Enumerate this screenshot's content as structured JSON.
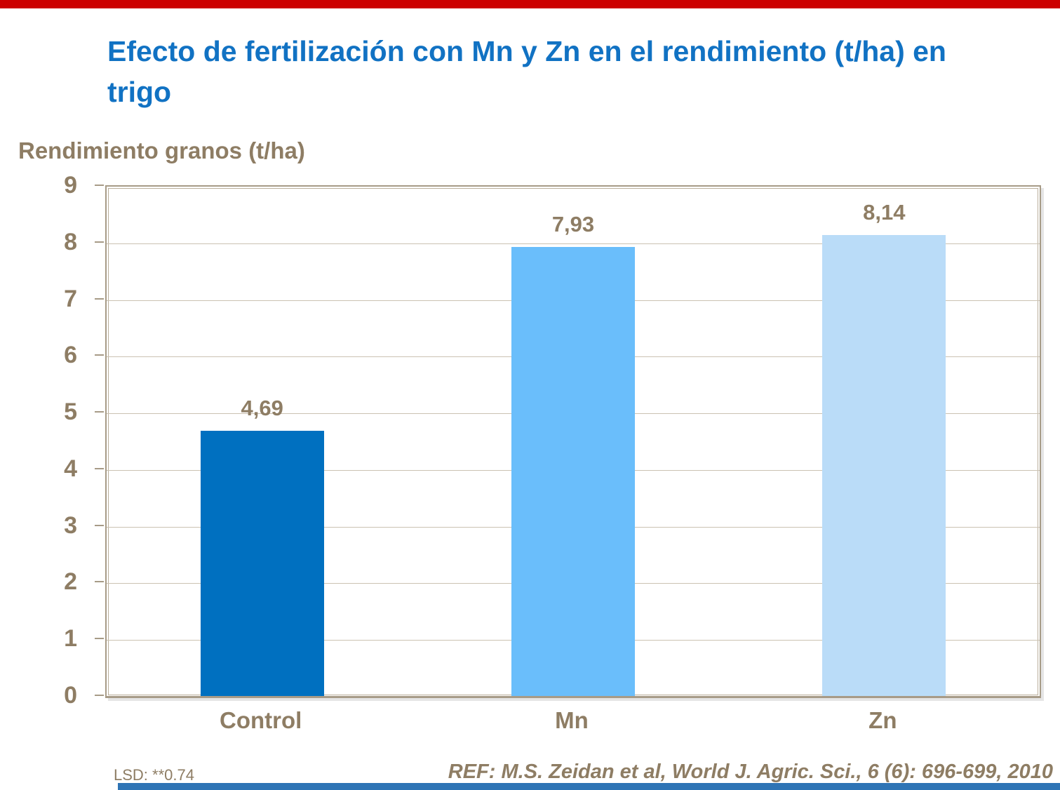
{
  "accents": {
    "top_bar_color": "#cc0000",
    "bottom_bar_color": "#2e74b5"
  },
  "colors": {
    "title_blue": "#1172c3",
    "label_brown": "#8e7d64",
    "frame_taupe": "#a79b87",
    "gridline_taupe": "#cbc2b2"
  },
  "title": "Efecto de fertilización con Mn y Zn en el rendimiento (t/ha) en trigo",
  "footer": {
    "lsd": "LSD: **0.74",
    "reference": "REF: M.S. Zeidan et al, World J. Agric. Sci., 6 (6): 696-699, 2010"
  },
  "chart_data": {
    "type": "bar",
    "title": "Efecto de fertilización con Mn y Zn en el rendimiento (t/ha) en trigo",
    "ylabel": "Rendimiento granos (t/ha)",
    "xlabel": "",
    "categories": [
      "Control",
      "Mn",
      "Zn"
    ],
    "values": [
      4.69,
      7.93,
      8.14
    ],
    "value_labels": [
      "4,69",
      "7,93",
      "8,14"
    ],
    "bar_colors": [
      "#0070c0",
      "#6abefb",
      "#badcf8"
    ],
    "ylim": [
      0,
      9
    ],
    "ytick_step": 1,
    "grid": true,
    "legend_position": "none"
  }
}
